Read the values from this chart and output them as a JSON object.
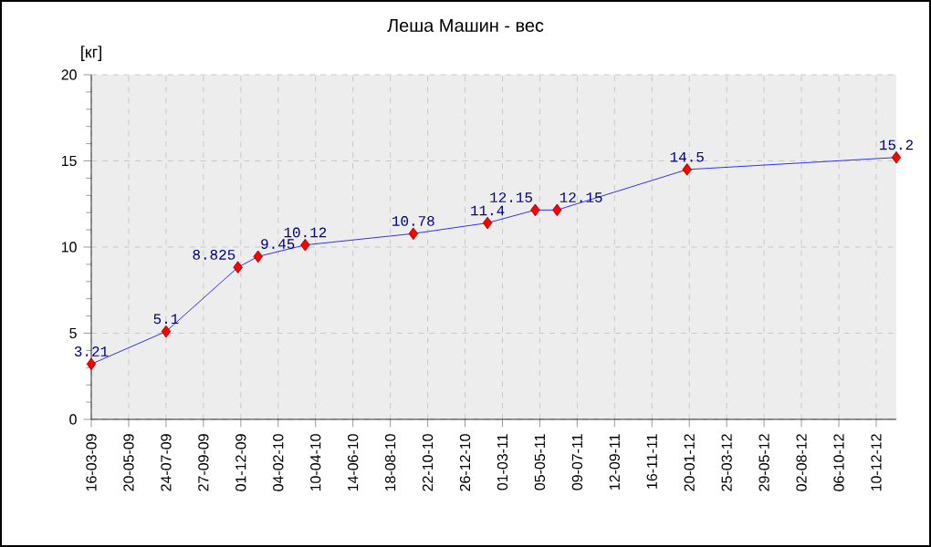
{
  "chart_data": {
    "type": "line",
    "title": "Леша Машин - вес",
    "ylabel": "[кг]",
    "x": [
      "2009-03-16",
      "2009-07-24",
      "2009-11-26",
      "2009-12-31",
      "2010-03-23",
      "2010-09-27",
      "2011-02-03",
      "2011-04-27",
      "2011-06-04",
      "2012-01-16",
      "2013-01-14"
    ],
    "series": [
      {
        "color": "#0000ff",
        "values": [
          3.21,
          5.1,
          8.825,
          9.45,
          10.12,
          10.78,
          11.4,
          12.15,
          12.15,
          14.5,
          15.2
        ]
      }
    ],
    "marker": "diamond",
    "data_labels": true,
    "grid": true,
    "xlim": [
      "2009-03-16",
      "2013-01-14"
    ],
    "xticks": [
      {
        "value": "2009-03-16",
        "label": "16-03-09"
      },
      {
        "value": "2009-05-20",
        "label": "20-05-09"
      },
      {
        "value": "2009-07-24",
        "label": "24-07-09"
      },
      {
        "value": "2009-09-27",
        "label": "27-09-09"
      },
      {
        "value": "2009-12-01",
        "label": "01-12-09"
      },
      {
        "value": "2010-02-04",
        "label": "04-02-10"
      },
      {
        "value": "2010-04-10",
        "label": "10-04-10"
      },
      {
        "value": "2010-06-14",
        "label": "14-06-10"
      },
      {
        "value": "2010-08-18",
        "label": "18-08-10"
      },
      {
        "value": "2010-10-22",
        "label": "22-10-10"
      },
      {
        "value": "2010-12-26",
        "label": "26-12-10"
      },
      {
        "value": "2011-03-01",
        "label": "01-03-11"
      },
      {
        "value": "2011-05-05",
        "label": "05-05-11"
      },
      {
        "value": "2011-07-09",
        "label": "09-07-11"
      },
      {
        "value": "2011-09-12",
        "label": "12-09-11"
      },
      {
        "value": "2011-11-16",
        "label": "16-11-11"
      },
      {
        "value": "2012-01-20",
        "label": "20-01-12"
      },
      {
        "value": "2012-03-25",
        "label": "25-03-12"
      },
      {
        "value": "2012-05-29",
        "label": "29-05-12"
      },
      {
        "value": "2012-08-02",
        "label": "02-08-12"
      },
      {
        "value": "2012-10-06",
        "label": "06-10-12"
      },
      {
        "value": "2012-12-10",
        "label": "10-12-12"
      }
    ],
    "ylim": [
      0,
      20
    ],
    "yticks": [
      0,
      5,
      10,
      15,
      20
    ]
  }
}
